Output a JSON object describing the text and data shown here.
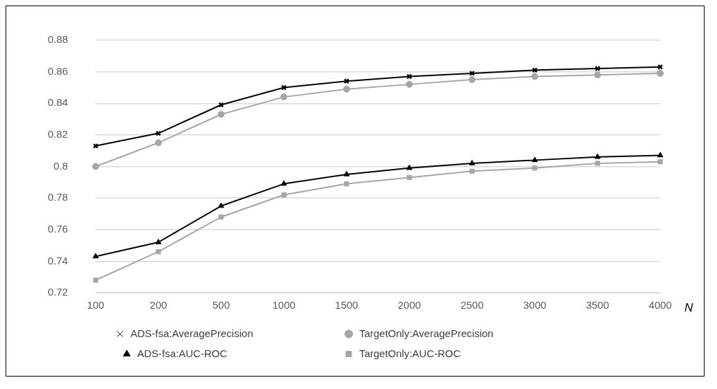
{
  "chart_data": {
    "type": "line",
    "xlabel": "N",
    "categories": [
      "100",
      "200",
      "500",
      "1000",
      "1500",
      "2000",
      "2500",
      "3000",
      "3500",
      "4000"
    ],
    "series": [
      {
        "name": "ADS-fsa:AveragePrecision",
        "color": "#000000",
        "marker": "cross",
        "values": [
          0.813,
          0.821,
          0.839,
          0.85,
          0.854,
          0.857,
          0.859,
          0.861,
          0.862,
          0.863
        ]
      },
      {
        "name": "TargetOnly:AveragePrecision",
        "color": "#a6a6a6",
        "marker": "circle",
        "values": [
          0.8,
          0.815,
          0.833,
          0.844,
          0.849,
          0.852,
          0.855,
          0.857,
          0.858,
          0.859
        ]
      },
      {
        "name": "ADS-fsa:AUC-ROC",
        "color": "#000000",
        "marker": "triangle",
        "values": [
          0.743,
          0.752,
          0.775,
          0.789,
          0.795,
          0.799,
          0.802,
          0.804,
          0.806,
          0.807
        ]
      },
      {
        "name": "TargetOnly:AUC-ROC",
        "color": "#a6a6a6",
        "marker": "square",
        "values": [
          0.728,
          0.746,
          0.768,
          0.782,
          0.789,
          0.793,
          0.797,
          0.799,
          0.802,
          0.803
        ]
      }
    ],
    "ylim": [
      0.72,
      0.88
    ],
    "yticks": [
      0.72,
      0.74,
      0.76,
      0.78,
      0.8,
      0.82,
      0.84,
      0.86,
      0.88
    ],
    "grid": "y",
    "legend": "bottom",
    "line_style": "solid"
  }
}
